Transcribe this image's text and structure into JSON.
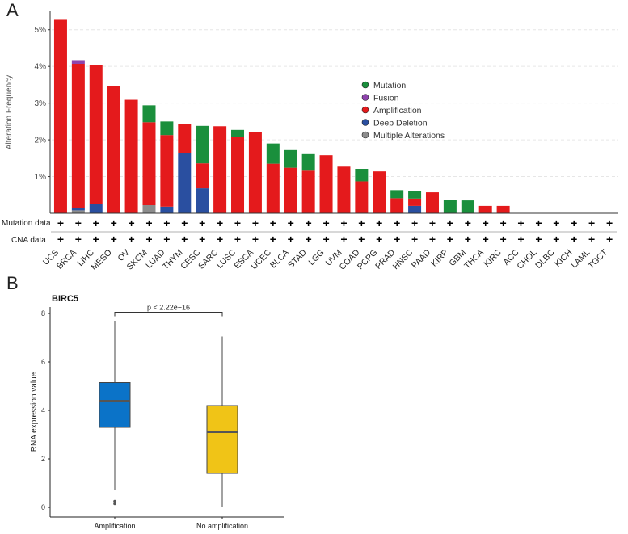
{
  "colors": {
    "mutation": "#1a8f3c",
    "fusion": "#8e44ad",
    "amplification": "#e41a1c",
    "deep_deletion": "#2a4fa0",
    "multiple": "#8c8c8c",
    "box_amp": "#0b73c8",
    "box_noamp": "#f0c417"
  },
  "panel_a": {
    "letter": "A",
    "row_labels": {
      "mutation": "Mutation data",
      "cna": "CNA data"
    },
    "plus": "+"
  },
  "panel_b": {
    "letter": "B",
    "gene": "BIRC5",
    "pvalue": "p < 2.22e−16"
  },
  "chart_data": [
    {
      "type": "bar",
      "stacked": true,
      "ylabel": "Alteration Frequency",
      "ylim": [
        0,
        5.5
      ],
      "yticks": [
        "1%",
        "2%",
        "3%",
        "4%",
        "5%"
      ],
      "ytick_values": [
        1,
        2,
        3,
        4,
        5
      ],
      "legend_position": "top-right",
      "categories": [
        "UCS",
        "BRCA",
        "LIHC",
        "MESO",
        "OV",
        "SKCM",
        "LUAD",
        "THYM",
        "CESC",
        "SARC",
        "LUSC",
        "ESCA",
        "UCEC",
        "BLCA",
        "STAD",
        "LGG",
        "UVM",
        "COAD",
        "PCPG",
        "PRAD",
        "HNSC",
        "PAAD",
        "KIRP",
        "GBM",
        "THCA",
        "KIRC",
        "ACC",
        "CHOL",
        "DLBC",
        "KICH",
        "LAML",
        "TGCT"
      ],
      "series": [
        {
          "name": "Multiple Alterations",
          "key": "multiple",
          "values": [
            0,
            0.08,
            0,
            0,
            0,
            0.22,
            0,
            0,
            0,
            0,
            0,
            0,
            0,
            0,
            0,
            0,
            0,
            0,
            0,
            0,
            0,
            0,
            0,
            0,
            0,
            0,
            0,
            0,
            0,
            0,
            0,
            0
          ]
        },
        {
          "name": "Deep Deletion",
          "key": "deep_deletion",
          "values": [
            0,
            0.07,
            0.26,
            0,
            0,
            0,
            0.18,
            1.63,
            0.68,
            0,
            0,
            0,
            0,
            0,
            0,
            0,
            0,
            0,
            0,
            0,
            0.2,
            0,
            0,
            0,
            0,
            0,
            0,
            0,
            0,
            0,
            0,
            0
          ]
        },
        {
          "name": "Amplification",
          "key": "amplification",
          "values": [
            5.27,
            3.92,
            3.78,
            3.46,
            3.09,
            2.26,
            1.95,
            0.81,
            0.68,
            2.37,
            2.07,
            2.22,
            1.35,
            1.24,
            1.16,
            1.58,
            1.27,
            0.87,
            1.14,
            0.41,
            0.2,
            0.57,
            0,
            0,
            0.2,
            0.2,
            0,
            0,
            0,
            0,
            0,
            0
          ]
        },
        {
          "name": "Fusion",
          "key": "fusion",
          "values": [
            0,
            0.1,
            0,
            0,
            0,
            0,
            0,
            0,
            0,
            0,
            0,
            0,
            0,
            0,
            0,
            0,
            0,
            0,
            0,
            0,
            0,
            0,
            0,
            0,
            0,
            0,
            0,
            0,
            0,
            0,
            0,
            0
          ]
        },
        {
          "name": "Mutation",
          "key": "mutation",
          "values": [
            0,
            0,
            0,
            0,
            0,
            0.46,
            0.37,
            0,
            1.02,
            0,
            0.2,
            0,
            0.55,
            0.48,
            0.45,
            0,
            0,
            0.34,
            0,
            0.22,
            0.2,
            0,
            0.37,
            0.35,
            0,
            0,
            0,
            0,
            0,
            0,
            0,
            0
          ]
        }
      ],
      "legend_order": [
        "Mutation",
        "Fusion",
        "Amplification",
        "Deep Deletion",
        "Multiple Alterations"
      ]
    },
    {
      "type": "box",
      "title": "BIRC5",
      "ylabel": "RNA expression value",
      "ylim": [
        0,
        8
      ],
      "yticks": [
        0,
        2,
        4,
        6,
        8
      ],
      "categories": [
        "Amplification",
        "No amplification"
      ],
      "boxes": [
        {
          "name": "Amplification",
          "whisker_low": 0.7,
          "q1": 3.3,
          "median": 4.4,
          "q3": 5.15,
          "whisker_high": 7.7,
          "outliers": [
            0.15,
            0.25
          ],
          "color_key": "box_amp"
        },
        {
          "name": "No amplification",
          "whisker_low": 0,
          "q1": 1.4,
          "median": 3.1,
          "q3": 4.2,
          "whisker_high": 7.05,
          "outliers": [],
          "color_key": "box_noamp"
        }
      ],
      "annotation": "p < 2.22e−16"
    }
  ]
}
